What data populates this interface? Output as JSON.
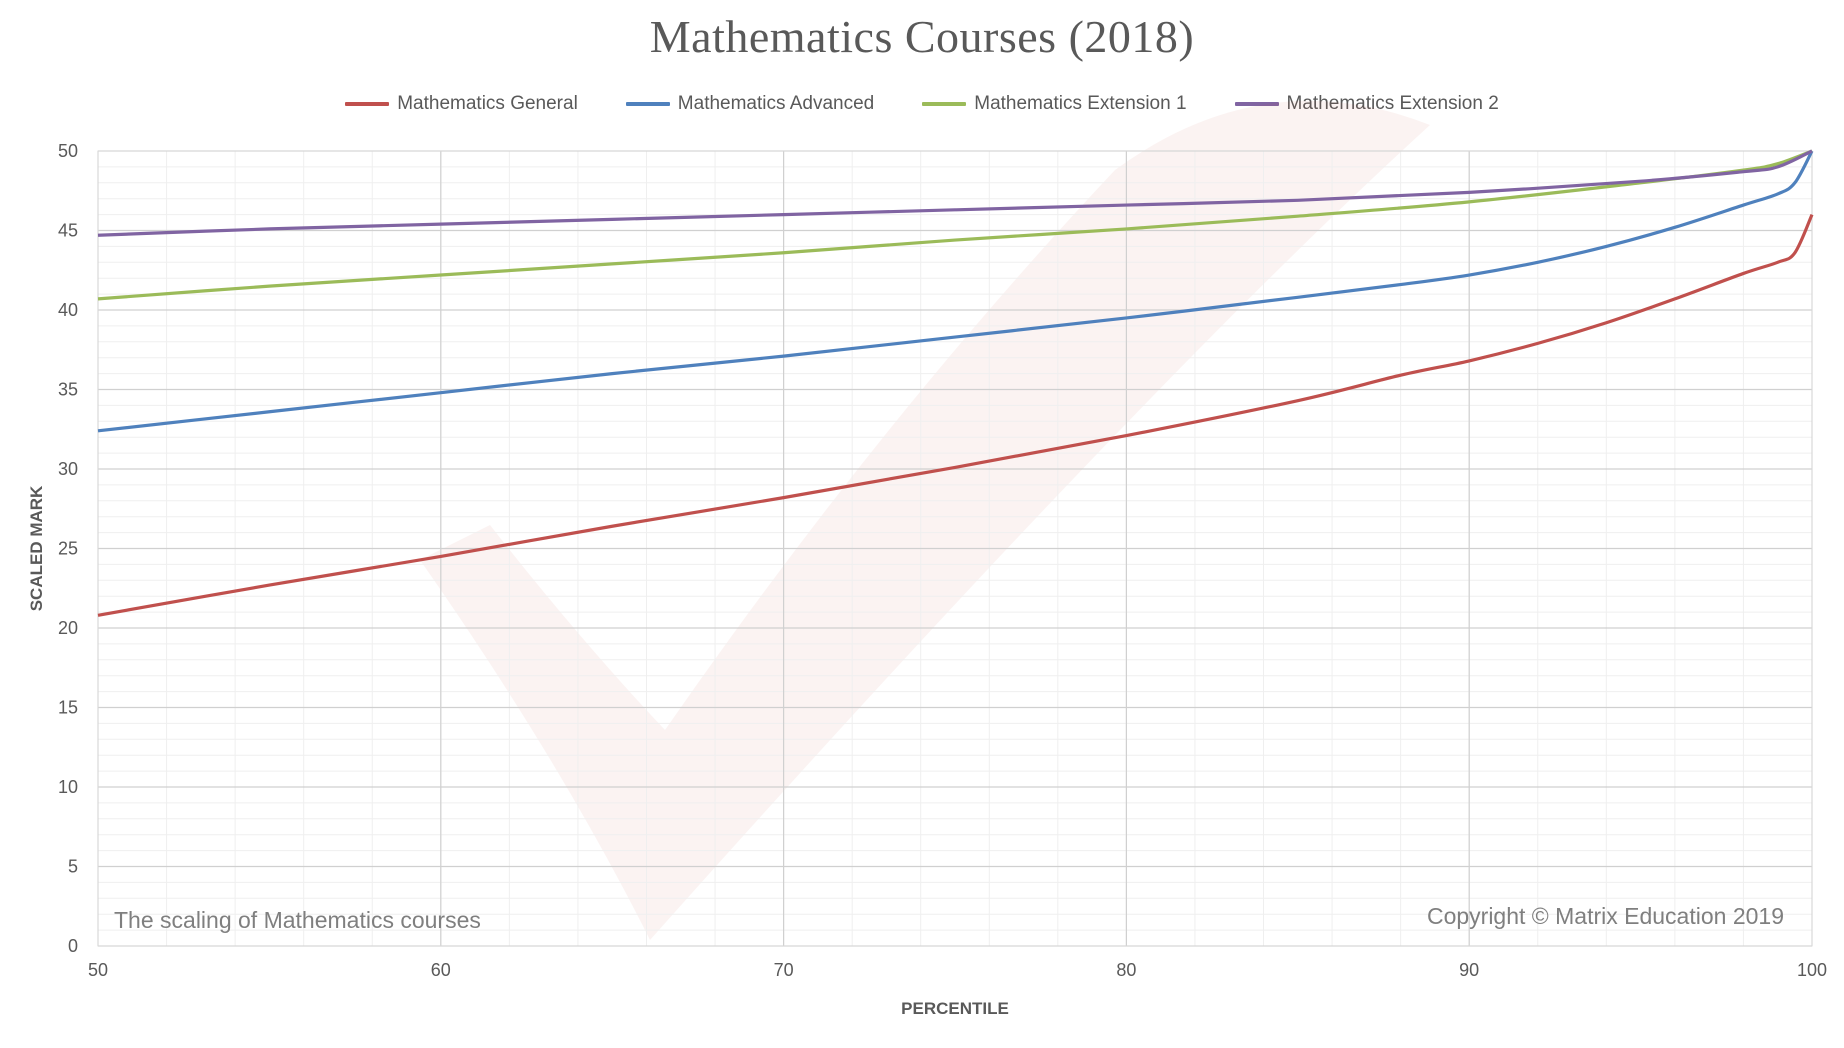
{
  "chart_data": {
    "type": "line",
    "title": "Mathematics Courses (2018)",
    "xlabel": "PERCENTILE",
    "ylabel": "SCALED MARK",
    "xlim": [
      50,
      100
    ],
    "ylim": [
      0,
      50
    ],
    "x_ticks": [
      50,
      60,
      70,
      80,
      90,
      100
    ],
    "y_ticks": [
      0,
      5,
      10,
      15,
      20,
      25,
      30,
      35,
      40,
      45,
      50
    ],
    "grid": true,
    "legend_position": "top",
    "series": [
      {
        "name": "Mathematics General",
        "color": "#C0504D",
        "x": [
          50,
          55,
          60,
          65,
          70,
          75,
          80,
          85,
          88,
          90,
          92,
          94,
          96,
          98,
          99,
          99.5,
          100
        ],
        "y": [
          20.8,
          22.7,
          24.5,
          26.4,
          28.2,
          30.1,
          32.1,
          34.3,
          35.9,
          36.8,
          37.9,
          39.2,
          40.7,
          42.3,
          43.0,
          43.6,
          46.0
        ]
      },
      {
        "name": "Mathematics Advanced",
        "color": "#4F81BD",
        "x": [
          50,
          55,
          60,
          65,
          70,
          75,
          80,
          85,
          88,
          90,
          92,
          94,
          96,
          98,
          99,
          99.5,
          100
        ],
        "y": [
          32.4,
          33.6,
          34.8,
          36.0,
          37.1,
          38.3,
          39.5,
          40.8,
          41.6,
          42.2,
          43.0,
          44.0,
          45.2,
          46.6,
          47.3,
          48.0,
          50.0
        ]
      },
      {
        "name": "Mathematics Extension 1",
        "color": "#9BBB59",
        "x": [
          50,
          55,
          60,
          65,
          70,
          75,
          80,
          85,
          90,
          95,
          98,
          99,
          100
        ],
        "y": [
          40.7,
          41.5,
          42.2,
          42.9,
          43.6,
          44.4,
          45.1,
          45.9,
          46.8,
          48.0,
          48.8,
          49.2,
          50.0
        ]
      },
      {
        "name": "Mathematics Extension 2",
        "color": "#8064A2",
        "x": [
          50,
          55,
          60,
          65,
          70,
          75,
          80,
          85,
          90,
          95,
          98,
          99,
          100
        ],
        "y": [
          44.7,
          45.1,
          45.4,
          45.7,
          46.0,
          46.3,
          46.6,
          46.9,
          47.4,
          48.1,
          48.7,
          49.0,
          50.0
        ]
      }
    ],
    "annotations": {
      "left_note": "The scaling of Mathematics courses",
      "right_note": "Copyright © Matrix Education 2019"
    }
  }
}
